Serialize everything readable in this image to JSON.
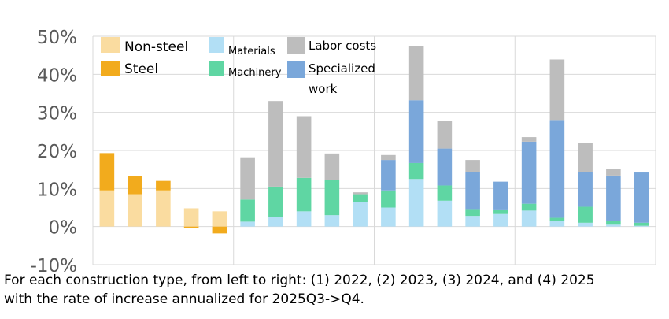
{
  "chart_data": {
    "type": "bar",
    "stacked": true,
    "grid": true,
    "ylim": [
      -10,
      50
    ],
    "yticks": [
      "-10%",
      "0%",
      "10%",
      "20%",
      "30%",
      "40%",
      "50%"
    ],
    "unit": "%",
    "groups": [
      {
        "bars": 5,
        "composition": "steel + non-steel"
      },
      {
        "bars": 5,
        "composition": "machinery + materials + labor costs"
      },
      {
        "bars": 5,
        "composition": "machinery + materials + specialized work + labor costs"
      },
      {
        "bars": 5,
        "composition": "machinery + materials + specialized work + labor costs"
      }
    ],
    "series": [
      {
        "name": "Non-steel",
        "color": "#fadca0",
        "values": [
          9.5,
          8.5,
          9.5,
          4.8,
          4.0,
          0,
          0,
          0,
          0,
          0,
          0,
          0,
          0,
          0,
          0,
          0,
          0,
          0,
          0,
          0
        ]
      },
      {
        "name": "Steel",
        "color": "#f2ab1d",
        "values": [
          9.8,
          4.8,
          2.5,
          -0.3,
          -1.8,
          0,
          0,
          0,
          0,
          0,
          0,
          0,
          0,
          0,
          0,
          0,
          0,
          0,
          0,
          0
        ]
      },
      {
        "name": "Materials",
        "color": "#b2dff5",
        "values": [
          0,
          0,
          0,
          0,
          0,
          1.3,
          2.5,
          4.0,
          3.0,
          6.5,
          5.0,
          12.5,
          6.8,
          2.8,
          3.3,
          4.2,
          1.5,
          1.0,
          0.5,
          0.2
        ]
      },
      {
        "name": "Machinery",
        "color": "#5fd6a3",
        "values": [
          0,
          0,
          0,
          0,
          0,
          5.8,
          8.0,
          8.8,
          9.3,
          2.0,
          4.5,
          4.2,
          4.0,
          1.8,
          1.2,
          1.8,
          0.8,
          4.2,
          1.0,
          0.8
        ]
      },
      {
        "name": "Specialized work",
        "color": "#7aa7da",
        "values": [
          0,
          0,
          0,
          0,
          0,
          0,
          0,
          0,
          0,
          0,
          8.0,
          16.5,
          9.7,
          9.7,
          7.3,
          16.3,
          25.7,
          9.2,
          11.9,
          13.2
        ]
      },
      {
        "name": "Labor costs",
        "color": "#bdbdbd",
        "values": [
          0,
          0,
          0,
          0,
          0,
          11.1,
          22.5,
          16.2,
          6.9,
          0.5,
          1.3,
          14.3,
          7.3,
          3.2,
          0,
          1.2,
          15.9,
          7.6,
          1.8,
          0
        ]
      }
    ],
    "legend_placement": "top-left, inside plot"
  },
  "legend": {
    "non_steel": "Non-steel",
    "steel": "Steel",
    "materials": "Materials",
    "machinery": "Machinery",
    "labor_costs": "Labor costs",
    "specialized_line1": "Specialized",
    "specialized_line2": "work"
  },
  "note": {
    "line1": "For each construction type, from left to right: (1) 2022, (2) 2023, (3) 2024, and (4) 2025",
    "line2": "with the  rate of increase annualized for 2025Q3->Q4."
  }
}
